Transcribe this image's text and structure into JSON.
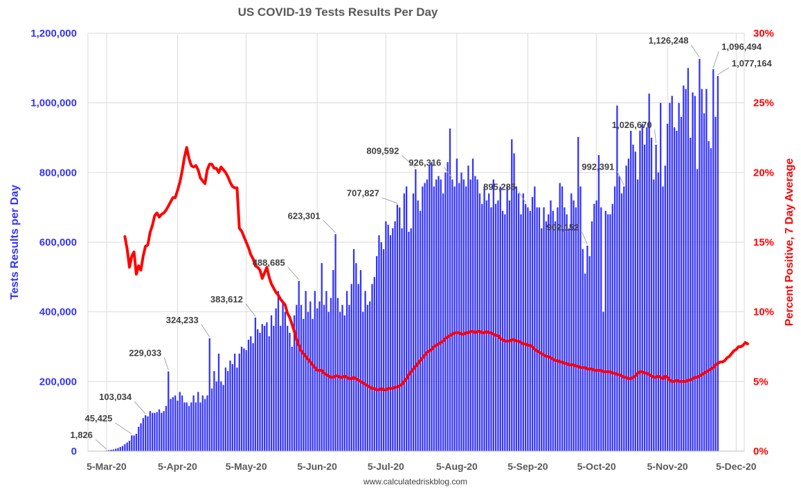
{
  "chart_data": {
    "type": "bar",
    "title": "US COVID-19 Tests Results Per Day",
    "ylabel": "Tests Results per Day",
    "y2label": "Percent Positive, 7 Day Average",
    "source": "www.calculatedriskblog.com",
    "ylim": [
      0,
      1200000
    ],
    "y2lim": [
      0,
      30
    ],
    "yticks": [
      "0",
      "200,000",
      "400,000",
      "600,000",
      "800,000",
      "1,000,000",
      "1,200,000"
    ],
    "y2ticks": [
      "0%",
      "5%",
      "10%",
      "15%",
      "20%",
      "25%",
      "30%"
    ],
    "xticks": [
      "5-Mar-20",
      "5-Apr-20",
      "5-May-20",
      "5-Jun-20",
      "5-Jul-20",
      "5-Aug-20",
      "5-Sep-20",
      "5-Oct-20",
      "5-Nov-20",
      "5-Dec-20"
    ],
    "start_date": "2020-03-01",
    "grid": true,
    "colors": {
      "bars": "#3333ff",
      "line": "#ff0000",
      "left_axis": "#3333ff",
      "right_axis": "#ff0000"
    },
    "series": [
      {
        "name": "Tests Results per Day",
        "type": "bar",
        "values": [
          0,
          0,
          0,
          0,
          1826,
          3000,
          4000,
          5000,
          7000,
          9000,
          12000,
          15000,
          20000,
          25000,
          30000,
          45425,
          45000,
          50000,
          70000,
          80000,
          95000,
          103034,
          100000,
          115000,
          110000,
          110000,
          112000,
          120000,
          110000,
          115000,
          130000,
          229033,
          150000,
          155000,
          160000,
          145000,
          170000,
          160000,
          140000,
          140000,
          130000,
          140000,
          160000,
          140000,
          170000,
          140000,
          160000,
          150000,
          160000,
          324233,
          180000,
          230000,
          200000,
          280000,
          200000,
          190000,
          240000,
          230000,
          260000,
          250000,
          280000,
          240000,
          280000,
          300000,
          295000,
          290000,
          320000,
          330000,
          310000,
          383612,
          350000,
          340000,
          365000,
          360000,
          370000,
          330000,
          390000,
          360000,
          410000,
          460000,
          360000,
          430000,
          400000,
          360000,
          340000,
          300000,
          390000,
          420000,
          488685,
          420000,
          380000,
          460000,
          400000,
          430000,
          380000,
          460000,
          410000,
          430000,
          540000,
          420000,
          460000,
          400000,
          440000,
          520000,
          623301,
          440000,
          400000,
          420000,
          390000,
          460000,
          420000,
          480000,
          580000,
          540000,
          480000,
          520000,
          400000,
          460000,
          420000,
          430000,
          480000,
          500000,
          560000,
          620000,
          600000,
          580000,
          660000,
          650000,
          620000,
          640000,
          660000,
          707827,
          700000,
          640000,
          740000,
          760000,
          630000,
          640000,
          740000,
          809592,
          720000,
          690000,
          760000,
          770000,
          780000,
          820000,
          830000,
          760000,
          780000,
          790000,
          780000,
          740000,
          800000,
          830000,
          926316,
          780000,
          760000,
          840000,
          770000,
          800000,
          780000,
          760000,
          820000,
          780000,
          840000,
          790000,
          780000,
          740000,
          710000,
          760000,
          720000,
          740000,
          700000,
          780000,
          710000,
          720000,
          760000,
          690000,
          680000,
          760000,
          720000,
          895285,
          855000,
          760000,
          740000,
          680000,
          740000,
          710000,
          700000,
          690000,
          730000,
          760000,
          700000,
          700000,
          640000,
          700000,
          660000,
          680000,
          720000,
          690000,
          660000,
          700000,
          770000,
          760000,
          700000,
          680000,
          640000,
          740000,
          720000,
          700000,
          902152,
          760000,
          580000,
          510000,
          590000,
          560000,
          660000,
          710000,
          720000,
          850000,
          700000,
          400000,
          690000,
          680000,
          680000,
          710000,
          760000,
          992391,
          790000,
          740000,
          760000,
          820000,
          840000,
          920000,
          880000,
          860000,
          780000,
          920000,
          940000,
          880000,
          930000,
          1026670,
          900000,
          780000,
          880000,
          800000,
          1000000,
          760000,
          820000,
          940000,
          1000000,
          1020000,
          930000,
          920000,
          1000000,
          960000,
          1050000,
          1040000,
          1100000,
          900000,
          1030000,
          1020000,
          810000,
          1126248,
          1040000,
          970000,
          1040000,
          890000,
          870000,
          1096494,
          960000,
          1077164
        ]
      },
      {
        "name": "Percent Positive, 7 Day Average",
        "type": "line",
        "axis": "right",
        "start_index": 12,
        "values": [
          15.4,
          14.5,
          13.2,
          14.0,
          14.3,
          12.7,
          13.3,
          13.0,
          14.0,
          14.7,
          14.8,
          15.7,
          16.2,
          16.9,
          17.1,
          16.8,
          17.0,
          17.1,
          17.3,
          17.6,
          17.9,
          18.2,
          18.2,
          18.7,
          19.3,
          20.1,
          21.1,
          21.8,
          21.0,
          20.5,
          20.4,
          20.5,
          20.2,
          19.6,
          19.4,
          19.2,
          20.2,
          20.6,
          20.6,
          20.3,
          20.3,
          20.0,
          20.4,
          20.2,
          20.0,
          19.7,
          19.3,
          19.0,
          18.9,
          18.9,
          16.0,
          15.8,
          15.4,
          15.0,
          14.6,
          14.1,
          13.8,
          13.3,
          13.2,
          13.0,
          12.4,
          12.8,
          13.2,
          12.5,
          12.0,
          11.7,
          11.4,
          11.2,
          10.9,
          10.7,
          10.5,
          9.9,
          9.6,
          9.1,
          8.6,
          8.0,
          7.6,
          7.2,
          7.0,
          6.8,
          6.6,
          6.4,
          6.2,
          6.0,
          5.8,
          5.8,
          5.8,
          5.6,
          5.5,
          5.4,
          5.3,
          5.3,
          5.4,
          5.4,
          5.3,
          5.3,
          5.4,
          5.3,
          5.2,
          5.2,
          5.3,
          5.2,
          5.1,
          5.0,
          4.9,
          4.8,
          4.7,
          4.6,
          4.5,
          4.5,
          4.4,
          4.4,
          4.5,
          4.4,
          4.4,
          4.5,
          4.5,
          4.5,
          4.6,
          4.6,
          4.7,
          4.8,
          5.0,
          5.2,
          5.5,
          5.7,
          5.9,
          6.1,
          6.3,
          6.5,
          6.7,
          6.9,
          7.1,
          7.2,
          7.3,
          7.5,
          7.6,
          7.7,
          7.8,
          7.9,
          8.1,
          8.2,
          8.3,
          8.4,
          8.5,
          8.5,
          8.5,
          8.4,
          8.4,
          8.5,
          8.5,
          8.6,
          8.6,
          8.5,
          8.6,
          8.6,
          8.5,
          8.5,
          8.6,
          8.5,
          8.5,
          8.4,
          8.3,
          8.3,
          8.1,
          8.0,
          7.9,
          7.9,
          7.9,
          8.0,
          8.0,
          7.9,
          7.9,
          7.8,
          7.7,
          7.7,
          7.6,
          7.6,
          7.5,
          7.3,
          7.2,
          7.1,
          7.0,
          6.9,
          6.8,
          6.8,
          6.7,
          6.6,
          6.5,
          6.5,
          6.4,
          6.4,
          6.3,
          6.3,
          6.2,
          6.2,
          6.2,
          6.1,
          6.1,
          6.0,
          6.0,
          6.0,
          5.9,
          5.9,
          5.9,
          5.8,
          5.8,
          5.8,
          5.8,
          5.7,
          5.7,
          5.7,
          5.7,
          5.6,
          5.6,
          5.5,
          5.5,
          5.4,
          5.3,
          5.3,
          5.2,
          5.2,
          5.3,
          5.4,
          5.6,
          5.7,
          5.7,
          5.6,
          5.6,
          5.5,
          5.4,
          5.3,
          5.3,
          5.4,
          5.3,
          5.2,
          5.4,
          5.3,
          5.1,
          5.0,
          5.0,
          5.1,
          5.0,
          5.0,
          5.0,
          5.0,
          5.1,
          5.1,
          5.2,
          5.3,
          5.3,
          5.4,
          5.5,
          5.6,
          5.7,
          5.8,
          5.9,
          6.0,
          6.2,
          6.3,
          6.4,
          6.4,
          6.5,
          6.7,
          6.8,
          7.0,
          7.2,
          7.3,
          7.5,
          7.5,
          7.6,
          7.8,
          7.7
        ]
      }
    ],
    "annotations": [
      {
        "label": "1,826",
        "index": 4
      },
      {
        "label": "45,425",
        "index": 15
      },
      {
        "label": "103,034",
        "index": 21
      },
      {
        "label": "229,033",
        "index": 31
      },
      {
        "label": "324,233",
        "index": 49
      },
      {
        "label": "383,612",
        "index": 69
      },
      {
        "label": "488,685",
        "index": 88
      },
      {
        "label": "623,301",
        "index": 104
      },
      {
        "label": "707,827",
        "index": 131
      },
      {
        "label": "809,592",
        "index": 139
      },
      {
        "label": "926,316",
        "index": 155
      },
      {
        "label": "895,285",
        "index": 187
      },
      {
        "label": "902,152",
        "index": 214
      },
      {
        "label": "992,391",
        "index": 230
      },
      {
        "label": "1,026,670",
        "index": 244
      },
      {
        "label": "1,126,248",
        "index": 263
      },
      {
        "label": "1,096,494",
        "index": 269
      },
      {
        "label": "1,077,164",
        "index": 271
      }
    ]
  }
}
